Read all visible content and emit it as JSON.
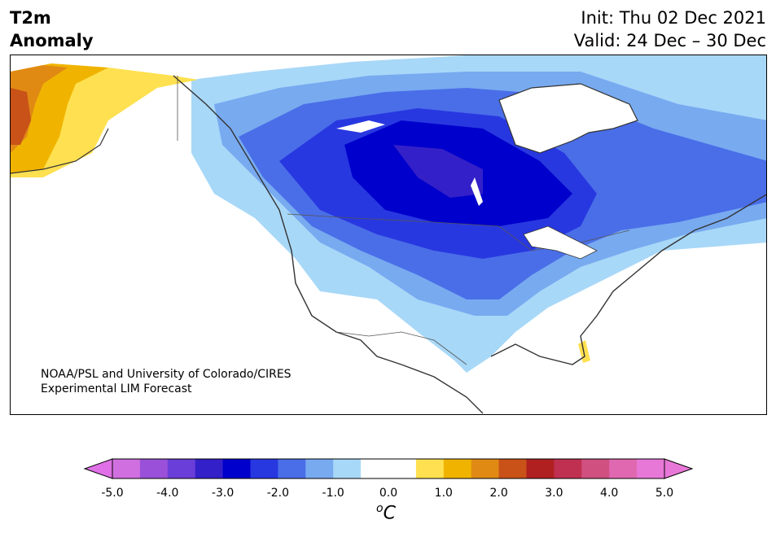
{
  "header": {
    "variable": "T2m",
    "type": "Anomaly",
    "init": "Init: Thu 02 Dec 2021",
    "valid": "Valid: 24 Dec – 30 Dec"
  },
  "credit": {
    "line1": "NOAA/PSL and University of Colorado/CIRES",
    "line2": "Experimental LIM Forecast"
  },
  "colorbar": {
    "ticks": [
      "-5.0",
      "-4.0",
      "-3.0",
      "-2.0",
      "-1.0",
      "0.0",
      "1.0",
      "2.0",
      "3.0",
      "4.0",
      "5.0"
    ],
    "unit_super": "o",
    "unit": "C",
    "colors": [
      "#d070e0",
      "#9a50d8",
      "#6a3ed8",
      "#3420c8",
      "#0000cc",
      "#2838e0",
      "#4a6ee8",
      "#78aaf0",
      "#a8d8f8",
      "#ffffff",
      "#ffffff",
      "#ffe050",
      "#f0b400",
      "#e08a14",
      "#c85218",
      "#b02020",
      "#c03050",
      "#d05080",
      "#e068b0",
      "#e878d8"
    ],
    "min_extend_color": "#e070e8",
    "max_extend_color": "#e878d8"
  }
}
